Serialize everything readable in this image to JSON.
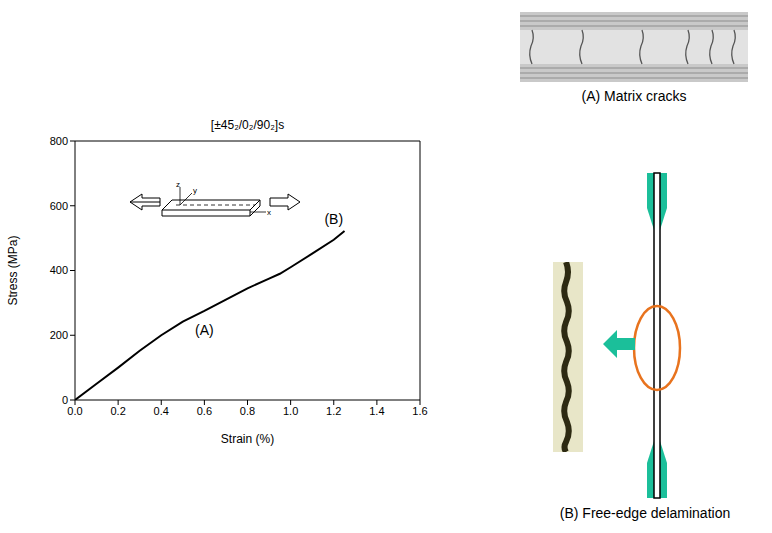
{
  "chart_data": {
    "type": "line",
    "title": "[±45₂/0₂/90₂]s",
    "x_label": "Strain (%)",
    "y_label": "Stress (MPa)",
    "x": [
      0.0,
      0.1,
      0.2,
      0.3,
      0.4,
      0.5,
      0.6,
      0.7,
      0.8,
      0.9,
      0.95,
      1.0,
      1.1,
      1.2,
      1.25
    ],
    "values": [
      0,
      50,
      100,
      152,
      200,
      242,
      275,
      310,
      345,
      375,
      390,
      410,
      452,
      495,
      522
    ],
    "color": "#000000",
    "xlim": [
      0,
      1.6
    ],
    "ylim": [
      0,
      800
    ],
    "xticks": [
      {
        "value": 0,
        "label": "0.0"
      },
      0.2,
      0.4,
      0.6,
      0.8,
      {
        "value": 1,
        "label": "1.0"
      },
      1.2,
      1.4,
      1.6
    ],
    "yticks": [
      0,
      200,
      400,
      600,
      800
    ],
    "annotations": [
      {
        "text": "(A)",
        "x": 0.6,
        "y": 215
      },
      {
        "text": "(B)",
        "x": 1.2,
        "y": 560
      }
    ],
    "inset_axes": [
      "x",
      "y",
      "z"
    ]
  },
  "images": [
    {
      "caption": "(A) Matrix cracks"
    },
    {
      "caption": "(B) Free-edge delamination"
    }
  ]
}
